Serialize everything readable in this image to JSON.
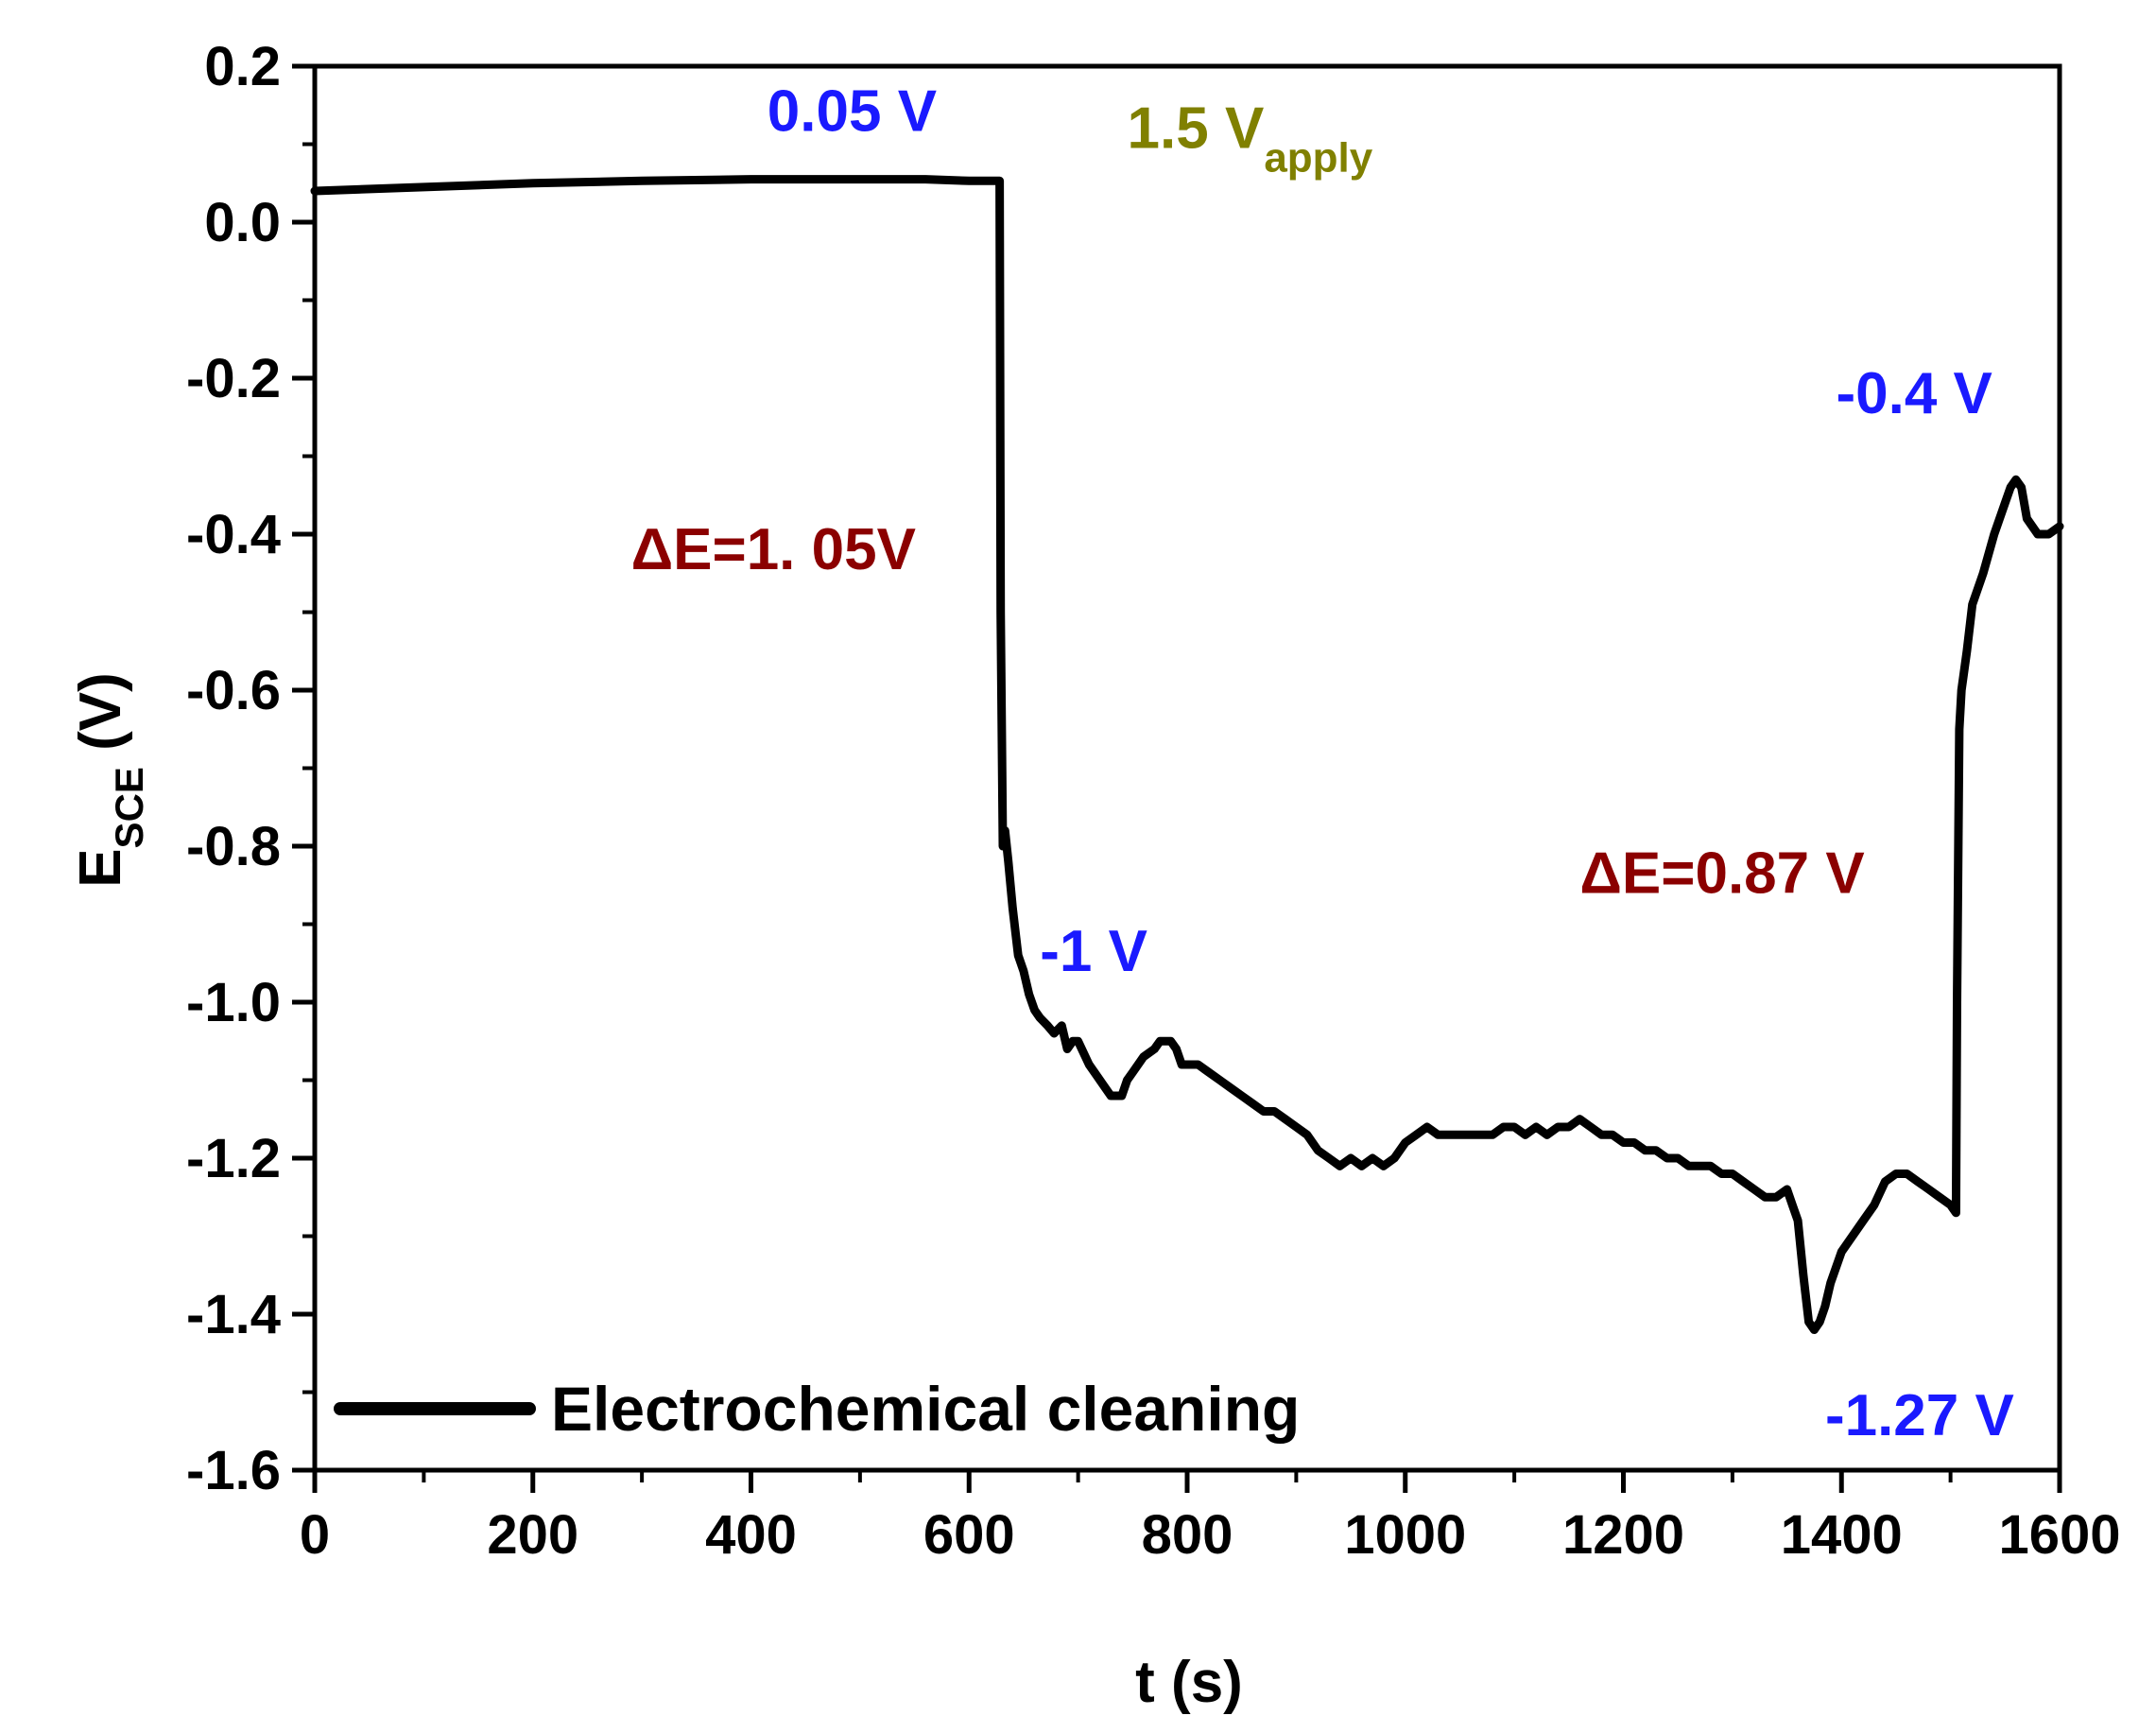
{
  "chart_data": {
    "type": "line",
    "title": "",
    "xlabel": "t (s)",
    "ylabel": {
      "main": "E",
      "sub": "SCE",
      "unit": " (V)"
    },
    "xlim": [
      0,
      1600
    ],
    "ylim": [
      -1.6,
      0.2
    ],
    "xticks": [
      0,
      200,
      400,
      600,
      800,
      1000,
      1200,
      1400,
      1600
    ],
    "yticks": [
      0.2,
      0.0,
      -0.2,
      -0.4,
      -0.6,
      -0.8,
      -1.0,
      -1.2,
      -1.4,
      -1.6
    ],
    "xtick_labels": [
      "0",
      "200",
      "400",
      "600",
      "800",
      "1000",
      "1200",
      "1400",
      "1600"
    ],
    "ytick_labels": [
      "0.2",
      "0.0",
      "-0.2",
      "-0.4",
      "-0.6",
      "-0.8",
      "-1.0",
      "-1.2",
      "-1.4",
      "-1.6"
    ],
    "grid": false,
    "legend": {
      "position": "bottom-left",
      "entries": [
        "Electrochemical cleaning"
      ]
    },
    "series": [
      {
        "name": "Electrochemical cleaning",
        "color": "#000000",
        "x": [
          0,
          100,
          200,
          300,
          400,
          500,
          560,
          600,
          628,
          629,
          631,
          633,
          636,
          640,
          645,
          650,
          655,
          660,
          665,
          672,
          678,
          685,
          690,
          695,
          700,
          710,
          720,
          730,
          740,
          745,
          750,
          760,
          770,
          775,
          780,
          785,
          790,
          795,
          800,
          810,
          820,
          830,
          840,
          850,
          860,
          870,
          880,
          890,
          900,
          910,
          920,
          930,
          940,
          950,
          960,
          970,
          980,
          990,
          1000,
          1010,
          1020,
          1030,
          1040,
          1050,
          1060,
          1070,
          1080,
          1090,
          1100,
          1110,
          1120,
          1130,
          1140,
          1150,
          1160,
          1170,
          1180,
          1190,
          1200,
          1210,
          1220,
          1230,
          1240,
          1250,
          1260,
          1270,
          1280,
          1290,
          1300,
          1310,
          1320,
          1330,
          1340,
          1350,
          1355,
          1360,
          1365,
          1370,
          1375,
          1380,
          1385,
          1390,
          1400,
          1410,
          1420,
          1430,
          1440,
          1450,
          1460,
          1470,
          1480,
          1490,
          1500,
          1505,
          1506,
          1508,
          1510,
          1515,
          1520,
          1530,
          1540,
          1550,
          1555,
          1560,
          1565,
          1570,
          1580,
          1590,
          1600
        ],
        "y": [
          0.04,
          0.045,
          0.05,
          0.053,
          0.055,
          0.055,
          0.055,
          0.053,
          0.053,
          -0.5,
          -0.8,
          -0.78,
          -0.82,
          -0.88,
          -0.94,
          -0.96,
          -0.99,
          -1.01,
          -1.02,
          -1.03,
          -1.04,
          -1.03,
          -1.06,
          -1.05,
          -1.05,
          -1.08,
          -1.1,
          -1.12,
          -1.12,
          -1.1,
          -1.09,
          -1.07,
          -1.06,
          -1.05,
          -1.05,
          -1.05,
          -1.06,
          -1.08,
          -1.08,
          -1.08,
          -1.09,
          -1.1,
          -1.11,
          -1.12,
          -1.13,
          -1.14,
          -1.14,
          -1.15,
          -1.16,
          -1.17,
          -1.19,
          -1.2,
          -1.21,
          -1.2,
          -1.21,
          -1.2,
          -1.21,
          -1.2,
          -1.18,
          -1.17,
          -1.16,
          -1.17,
          -1.17,
          -1.17,
          -1.17,
          -1.17,
          -1.17,
          -1.16,
          -1.16,
          -1.17,
          -1.16,
          -1.17,
          -1.16,
          -1.16,
          -1.15,
          -1.16,
          -1.17,
          -1.17,
          -1.18,
          -1.18,
          -1.19,
          -1.19,
          -1.2,
          -1.2,
          -1.21,
          -1.21,
          -1.21,
          -1.22,
          -1.22,
          -1.23,
          -1.24,
          -1.25,
          -1.25,
          -1.24,
          -1.26,
          -1.28,
          -1.35,
          -1.41,
          -1.42,
          -1.41,
          -1.39,
          -1.36,
          -1.32,
          -1.3,
          -1.28,
          -1.26,
          -1.23,
          -1.22,
          -1.22,
          -1.23,
          -1.24,
          -1.25,
          -1.26,
          -1.27,
          -1.0,
          -0.65,
          -0.6,
          -0.55,
          -0.49,
          -0.45,
          -0.4,
          -0.36,
          -0.34,
          -0.33,
          -0.34,
          -0.38,
          -0.4,
          -0.4,
          -0.39
        ]
      }
    ],
    "annotations": [
      {
        "id": "ann-0-05v",
        "text": "0.05 V",
        "x": 415,
        "y": 0.117,
        "color": "#1a1aff",
        "bold": true
      },
      {
        "id": "ann-1-5v-apply",
        "text": "1.5 V",
        "sub": "apply",
        "x": 745,
        "y": 0.095,
        "color": "#808000",
        "bold": true
      },
      {
        "id": "ann-delta-1-05v",
        "text": "ΔE=1. 05V",
        "x": 290,
        "y": -0.445,
        "color": "#8b0000",
        "bold": true
      },
      {
        "id": "ann-minus-1v",
        "text": "-1 V",
        "x": 665,
        "y": -0.96,
        "color": "#1a1aff",
        "bold": false
      },
      {
        "id": "ann-minus-0-4v",
        "text": "-0.4 V",
        "x": 1395,
        "y": -0.245,
        "color": "#1a1aff",
        "bold": true
      },
      {
        "id": "ann-delta-0-87v",
        "text": "ΔE=0.87 V",
        "x": 1160,
        "y": -0.86,
        "color": "#8b0000",
        "bold": true
      },
      {
        "id": "ann-minus-1-27v",
        "text": "-1.27 V",
        "x": 1385,
        "y": -1.555,
        "color": "#1a1aff",
        "bold": true
      }
    ]
  }
}
